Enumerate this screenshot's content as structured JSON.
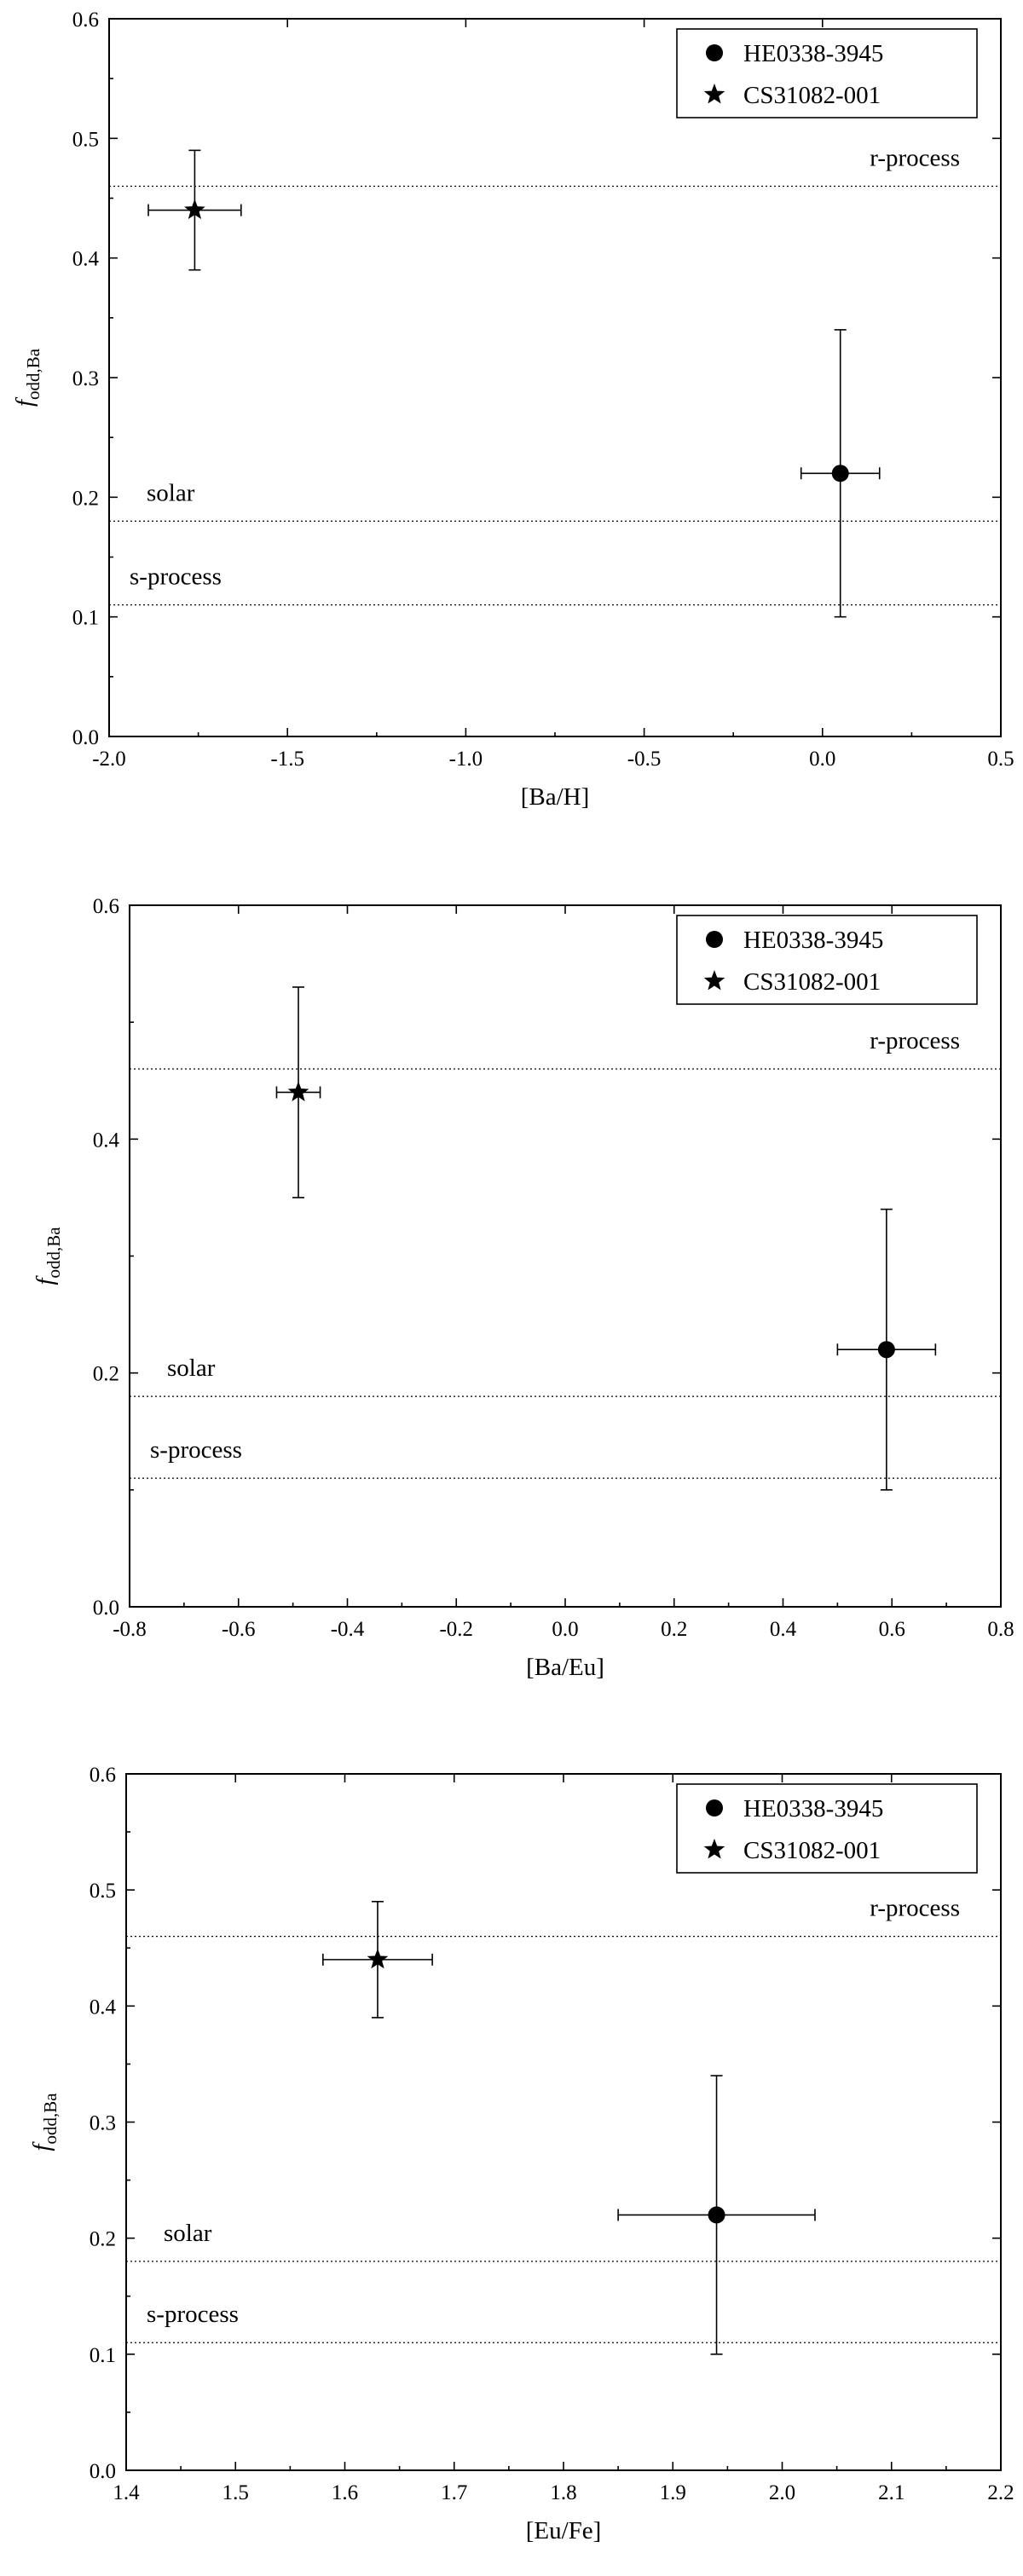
{
  "chart_data": [
    {
      "type": "scatter",
      "xlabel": "[Ba/H]",
      "ylabel_main": "f",
      "ylabel_sub": "odd,Ba",
      "xlim": [
        -2.0,
        0.5
      ],
      "ylim": [
        0.0,
        0.6
      ],
      "xticks": [
        "-2.0",
        "-1.5",
        "-1.0",
        "-0.5",
        "0.0",
        "0.5"
      ],
      "yticks": [
        "0.0",
        "0.1",
        "0.2",
        "0.3",
        "0.4",
        "0.5",
        "0.6"
      ],
      "reference_lines": [
        {
          "label": "r-process",
          "y": 0.46
        },
        {
          "label": "solar",
          "y": 0.18
        },
        {
          "label": "s-process",
          "y": 0.11
        }
      ],
      "series": [
        {
          "name": "HE0338-3945",
          "marker": "circle",
          "x": 0.05,
          "y": 0.22,
          "xerr": 0.11,
          "yerr": 0.12
        },
        {
          "name": "CS31082-001",
          "marker": "star",
          "x": -1.76,
          "y": 0.44,
          "xerr": 0.13,
          "yerr": 0.05
        }
      ],
      "legend": "top-right",
      "grid": false
    },
    {
      "type": "scatter",
      "xlabel": "[Ba/Eu]",
      "ylabel_main": "f",
      "ylabel_sub": "odd,Ba",
      "xlim": [
        -0.8,
        0.8
      ],
      "ylim": [
        0.0,
        0.6
      ],
      "xticks": [
        "-0.8",
        "-0.6",
        "-0.4",
        "-0.2",
        "0.0",
        "0.2",
        "0.4",
        "0.6",
        "0.8"
      ],
      "yticks": [
        "0.0",
        "0.2",
        "0.4",
        "0.6"
      ],
      "reference_lines": [
        {
          "label": "r-process",
          "y": 0.46
        },
        {
          "label": "solar",
          "y": 0.18
        },
        {
          "label": "s-process",
          "y": 0.11
        }
      ],
      "series": [
        {
          "name": "HE0338-3945",
          "marker": "circle",
          "x": 0.59,
          "y": 0.22,
          "xerr": 0.09,
          "yerr": 0.12
        },
        {
          "name": "CS31082-001",
          "marker": "star",
          "x": -0.49,
          "y": 0.44,
          "xerr": 0.04,
          "yerr": 0.09
        }
      ],
      "legend": "top-right",
      "grid": false
    },
    {
      "type": "scatter",
      "xlabel": "[Eu/Fe]",
      "ylabel_main": "f",
      "ylabel_sub": "odd,Ba",
      "xlim": [
        1.4,
        2.2
      ],
      "ylim": [
        0.0,
        0.6
      ],
      "xticks": [
        "1.4",
        "1.5",
        "1.6",
        "1.7",
        "1.8",
        "1.9",
        "2.0",
        "2.1",
        "2.2"
      ],
      "yticks": [
        "0.0",
        "0.1",
        "0.2",
        "0.3",
        "0.4",
        "0.5",
        "0.6"
      ],
      "reference_lines": [
        {
          "label": "r-process",
          "y": 0.46
        },
        {
          "label": "solar",
          "y": 0.18
        },
        {
          "label": "s-process",
          "y": 0.11
        }
      ],
      "series": [
        {
          "name": "HE0338-3945",
          "marker": "circle",
          "x": 1.94,
          "y": 0.22,
          "xerr": 0.09,
          "yerr": 0.12
        },
        {
          "name": "CS31082-001",
          "marker": "star",
          "x": 1.63,
          "y": 0.44,
          "xerr": 0.05,
          "yerr": 0.05
        }
      ],
      "legend": "top-right",
      "grid": false
    }
  ]
}
